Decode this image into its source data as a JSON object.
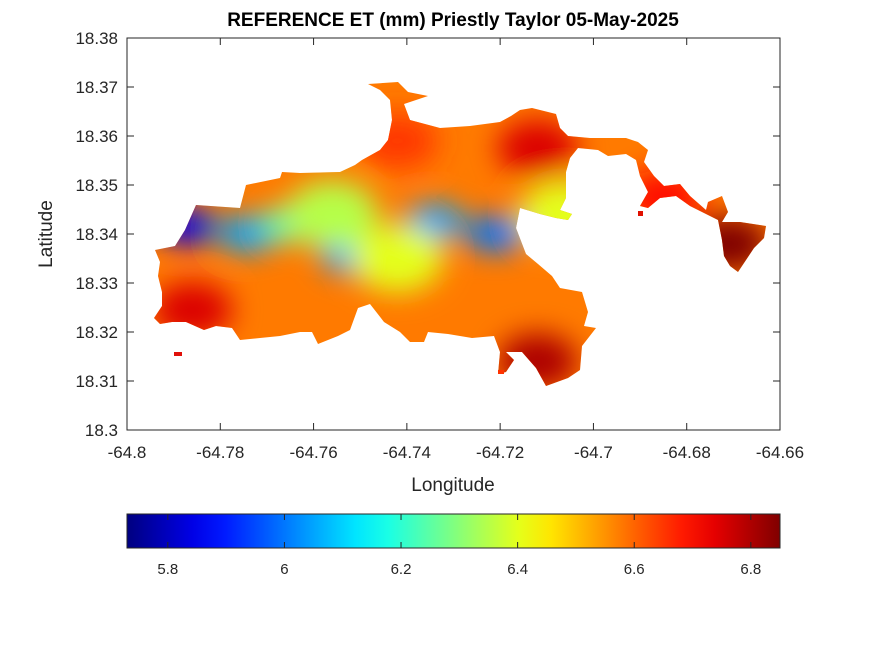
{
  "chart_data": {
    "type": "heatmap",
    "title": "REFERENCE ET (mm) Priestly Taylor 05-May-2025",
    "xlabel": "Longitude",
    "ylabel": "Latitude",
    "xlim": [
      -64.8,
      -64.66
    ],
    "ylim": [
      18.3,
      18.38
    ],
    "xticks": [
      -64.8,
      -64.78,
      -64.76,
      -64.74,
      -64.72,
      -64.7,
      -64.68,
      -64.66
    ],
    "xtick_labels": [
      "-64.8",
      "-64.78",
      "-64.76",
      "-64.74",
      "-64.72",
      "-64.7",
      "-64.68",
      "-64.66"
    ],
    "yticks": [
      18.3,
      18.31,
      18.32,
      18.33,
      18.34,
      18.35,
      18.36,
      18.37,
      18.38
    ],
    "ytick_labels": [
      "18.3",
      "18.31",
      "18.32",
      "18.33",
      "18.34",
      "18.35",
      "18.36",
      "18.37",
      "18.38"
    ],
    "colormap": "jet",
    "clim": [
      5.73,
      6.85
    ],
    "colorbar_orientation": "horizontal",
    "colorbar_placement": "bottom",
    "colorbar_ticks": [
      5.8,
      6,
      6.2,
      6.4,
      6.6,
      6.8
    ],
    "colorbar_tick_labels": [
      "5.8",
      "6",
      "6.2",
      "6.4",
      "6.6",
      "6.8"
    ],
    "grid": false,
    "sample_points": [
      {
        "lon": -64.787,
        "lat": 18.3415,
        "value": 5.85
      },
      {
        "lon": -64.774,
        "lat": 18.34,
        "value": 6.05
      },
      {
        "lon": -64.752,
        "lat": 18.3355,
        "value": 6.05
      },
      {
        "lon": -64.734,
        "lat": 18.3425,
        "value": 6.05
      },
      {
        "lon": -64.721,
        "lat": 18.34,
        "value": 6.0
      },
      {
        "lon": -64.765,
        "lat": 18.342,
        "value": 6.25
      },
      {
        "lon": -64.742,
        "lat": 18.335,
        "value": 6.4
      },
      {
        "lon": -64.756,
        "lat": 18.344,
        "value": 6.35
      },
      {
        "lon": -64.706,
        "lat": 18.344,
        "value": 6.4
      },
      {
        "lon": -64.742,
        "lat": 18.359,
        "value": 6.65
      },
      {
        "lon": -64.712,
        "lat": 18.3575,
        "value": 6.75
      },
      {
        "lon": -64.712,
        "lat": 18.314,
        "value": 6.8
      },
      {
        "lon": -64.786,
        "lat": 18.3245,
        "value": 6.75
      },
      {
        "lon": -64.685,
        "lat": 18.3475,
        "value": 6.7
      },
      {
        "lon": -64.671,
        "lat": 18.338,
        "value": 6.85
      }
    ]
  }
}
